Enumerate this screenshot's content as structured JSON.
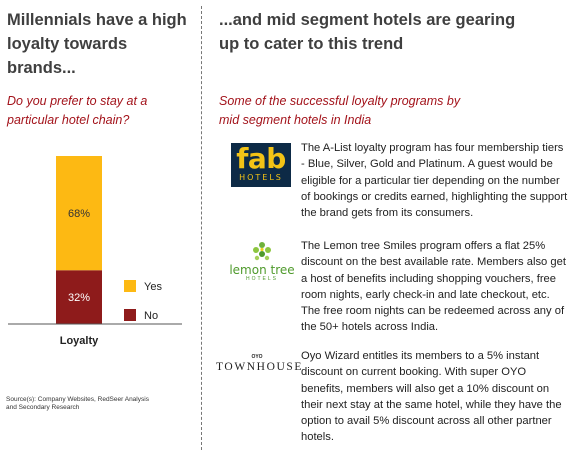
{
  "left_panel": {
    "heading_line1": "Millennials have a high",
    "heading_line2": "loyalty towards brands...",
    "question_line1": "Do you prefer to stay at a",
    "question_line2": "particular hotel chain?",
    "source_line1": "Source(s): Company Websites, RedSeer Analysis",
    "source_line2": "and Secondary Research"
  },
  "right_panel": {
    "heading_line1": "...and mid segment hotels are gearing",
    "heading_line2": "up to cater to this trend",
    "sub_line1": "Some of the successful loyalty programs by",
    "sub_line2": "mid segment hotels in India",
    "programs": [
      {
        "logo": {
          "word": "fab",
          "subword": "HOTELS"
        },
        "text": "The A-List loyalty program has four membership tiers - Blue, Silver, Gold and Platinum. A guest would be eligible for a particular tier depending on the number of bookings or credits earned, highlighting the support the brand gets from its consumers."
      },
      {
        "logo": {
          "word": "lemon tree",
          "subword": "HOTELS"
        },
        "text": "The Lemon tree Smiles program offers a flat 25% discount on the best available rate. Members also get a host of benefits including shopping vouchers, free room nights, early check-in and late checkout, etc. The free room nights can be redeemed across any of the 50+ hotels across India."
      },
      {
        "logo": {
          "word": "TOWNHOUSE",
          "subword": "OYO"
        },
        "text": "Oyo Wizard entitles its members to a 5% instant discount on current booking. With super OYO benefits, members will also get a 10% discount on their next stay at the same hotel, while they have the option to avail 5% discount across all other partner hotels."
      }
    ]
  },
  "colors": {
    "yes": "#fdb913",
    "no": "#8e1b1b",
    "accent": "#a3131b",
    "heading": "#3f3f3f"
  },
  "chart_data": {
    "type": "bar",
    "stacked": true,
    "categories": [
      "Loyalty"
    ],
    "series": [
      {
        "name": "Yes",
        "values": [
          68
        ],
        "label": "68%"
      },
      {
        "name": "No",
        "values": [
          32
        ],
        "label": "32%"
      }
    ],
    "ylim": [
      0,
      100
    ],
    "legend": "right",
    "grid": false
  }
}
